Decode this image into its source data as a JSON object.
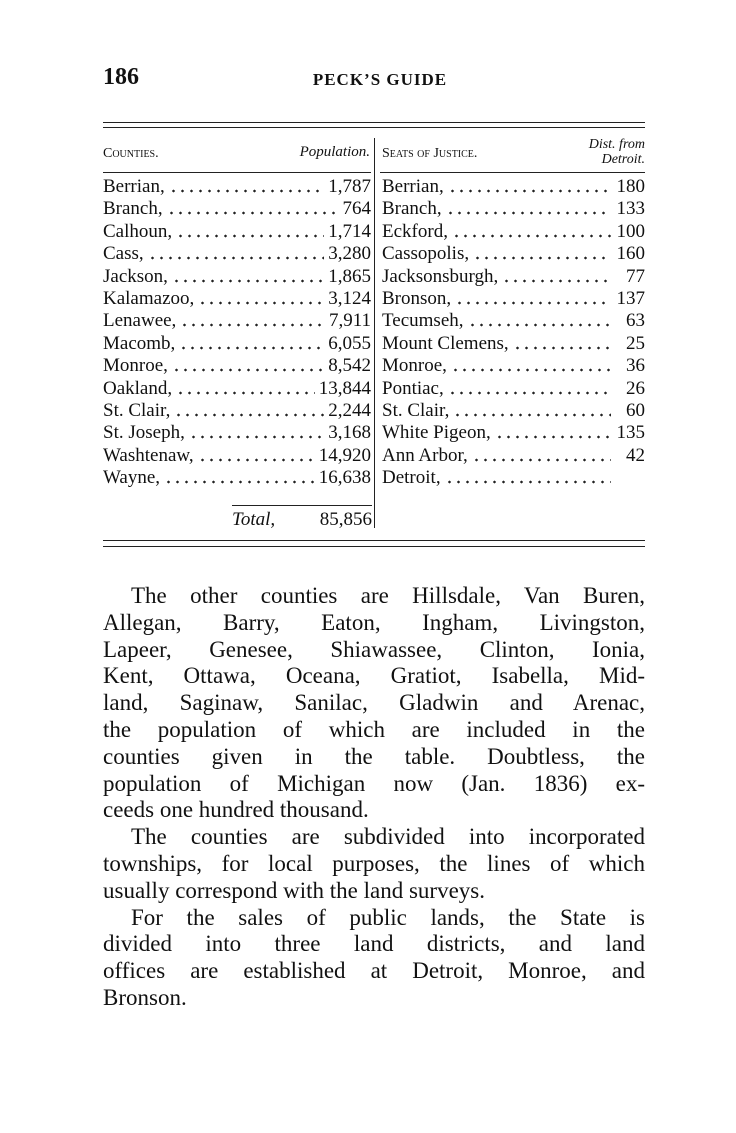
{
  "header": {
    "page_number": "186",
    "running_title": "PECK’S GUIDE"
  },
  "table": {
    "headers": {
      "county": "Counties.",
      "population": "Population.",
      "seat": "Seats of Justice.",
      "distance": [
        "Dist. from",
        "Detroit."
      ]
    },
    "rows": [
      [
        "Berrian,",
        "1,787",
        "Berrian,",
        "180"
      ],
      [
        "Branch,",
        "764",
        "Branch,",
        "133"
      ],
      [
        "Calhoun,",
        "1,714",
        "Eckford,",
        "100"
      ],
      [
        "Cass,",
        "3,280",
        "Cassopolis,",
        "160"
      ],
      [
        "Jackson,",
        "1,865",
        "Jacksonsburgh,",
        "77"
      ],
      [
        "Kalamazoo,",
        "3,124",
        "Bronson,",
        "137"
      ],
      [
        "Lenawee,",
        "7,911",
        "Tecumseh,",
        "63"
      ],
      [
        "Macomb,",
        "6,055",
        "Mount Clemens,",
        "25"
      ],
      [
        "Monroe,",
        "8,542",
        "Monroe,",
        "36"
      ],
      [
        "Oakland,",
        "13,844",
        "Pontiac,",
        "26"
      ],
      [
        "St. Clair,",
        "2,244",
        "St. Clair,",
        "60"
      ],
      [
        "St. Joseph,",
        "3,168",
        "White Pigeon,",
        "135"
      ],
      [
        "Washtenaw,",
        "14,920",
        "Ann Arbor,",
        "42"
      ],
      [
        "Wayne,",
        "16,638",
        "Detroit,"
      ]
    ],
    "total": {
      "label": "Total,",
      "value": "85,856"
    }
  },
  "paragraphs": [
    [
      "The other counties are Hillsdale, Van Buren,",
      "Allegan, Barry, Eaton, Ingham, Livingston,",
      "Lapeer, Genesee, Shiawassee, Clinton, Ionia,",
      "Kent, Ottawa, Oceana, Gratiot, Isabella, Mid-",
      "land, Saginaw, Sanilac, Gladwin and Arenac,",
      "the population of which are included in the",
      "counties given in the table. Doubtless, the",
      "population of Michigan now (Jan. 1836) ex-",
      "ceeds one hundred thousand."
    ],
    [
      "The counties are subdivided into incorporated",
      "townships, for local purposes, the lines of which",
      "usually correspond with the land surveys."
    ],
    [
      "For the sales of public lands, the State is",
      "divided into three land districts, and land",
      "offices are established at Detroit, Monroe, and",
      "Bronson."
    ]
  ]
}
